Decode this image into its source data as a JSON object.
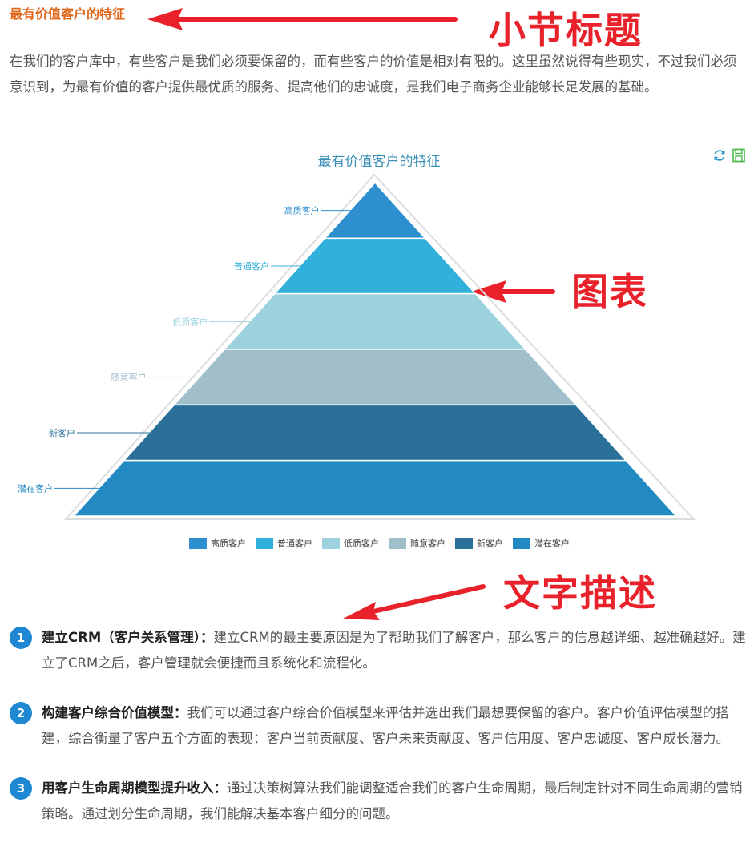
{
  "section_title": "最有价值客户的特征",
  "annotations": {
    "title": "小节标题",
    "chart": "图表",
    "text": "文字描述"
  },
  "intro": "在我们的客户库中，有些客户是我们必须要保留的，而有些客户的价值是相对有限的。这里虽然说得有些现实，不过我们必须意识到，为最有价值的客户提供最优质的服务、提高他们的忠诚度，是我们电子商务企业能够长足发展的基础。",
  "toolbar": {
    "refresh_icon": "refresh-icon",
    "save_icon": "save-image-icon"
  },
  "colors": {
    "section_title": "#e0671a",
    "annotation": "#e8212a",
    "chart_title": "#3a8fb7",
    "number_badge": "#1e88d3"
  },
  "chart_data": {
    "type": "funnel",
    "title": "最有价值客户的特征",
    "categories": [
      "高质客户",
      "普通客户",
      "低质客户",
      "随意客户",
      "新客户",
      "潜在客户"
    ],
    "colors": [
      "#2e8fcf",
      "#30b0db",
      "#9bd2de",
      "#a0bfca",
      "#2a7098",
      "#2389c3"
    ],
    "legend": [
      "高质客户",
      "普通客户",
      "低质客户",
      "随意客户",
      "新客户",
      "潜在客户"
    ],
    "legend_position": "bottom-center"
  },
  "points": [
    {
      "number": "1",
      "heading": "建立CRM（客户关系管理）：",
      "text": "建立CRM的最主要原因是为了帮助我们了解客户，那么客户的信息越详细、越准确越好。建立了CRM之后，客户管理就会便捷而且系统化和流程化。"
    },
    {
      "number": "2",
      "heading": "构建客户综合价值模型：",
      "text": "我们可以通过客户综合价值模型来评估并选出我们最想要保留的客户。客户价值评估模型的搭建，综合衡量了客户五个方面的表现：客户当前贡献度、客户未来贡献度、客户信用度、客户忠诚度、客户成长潜力。"
    },
    {
      "number": "3",
      "heading": "用客户生命周期模型提升收入：",
      "text": "通过决策树算法我们能调整适合我们的客户生命周期，最后制定针对不同生命周期的营销策略。通过划分生命周期，我们能解决基本客户细分的问题。"
    }
  ]
}
